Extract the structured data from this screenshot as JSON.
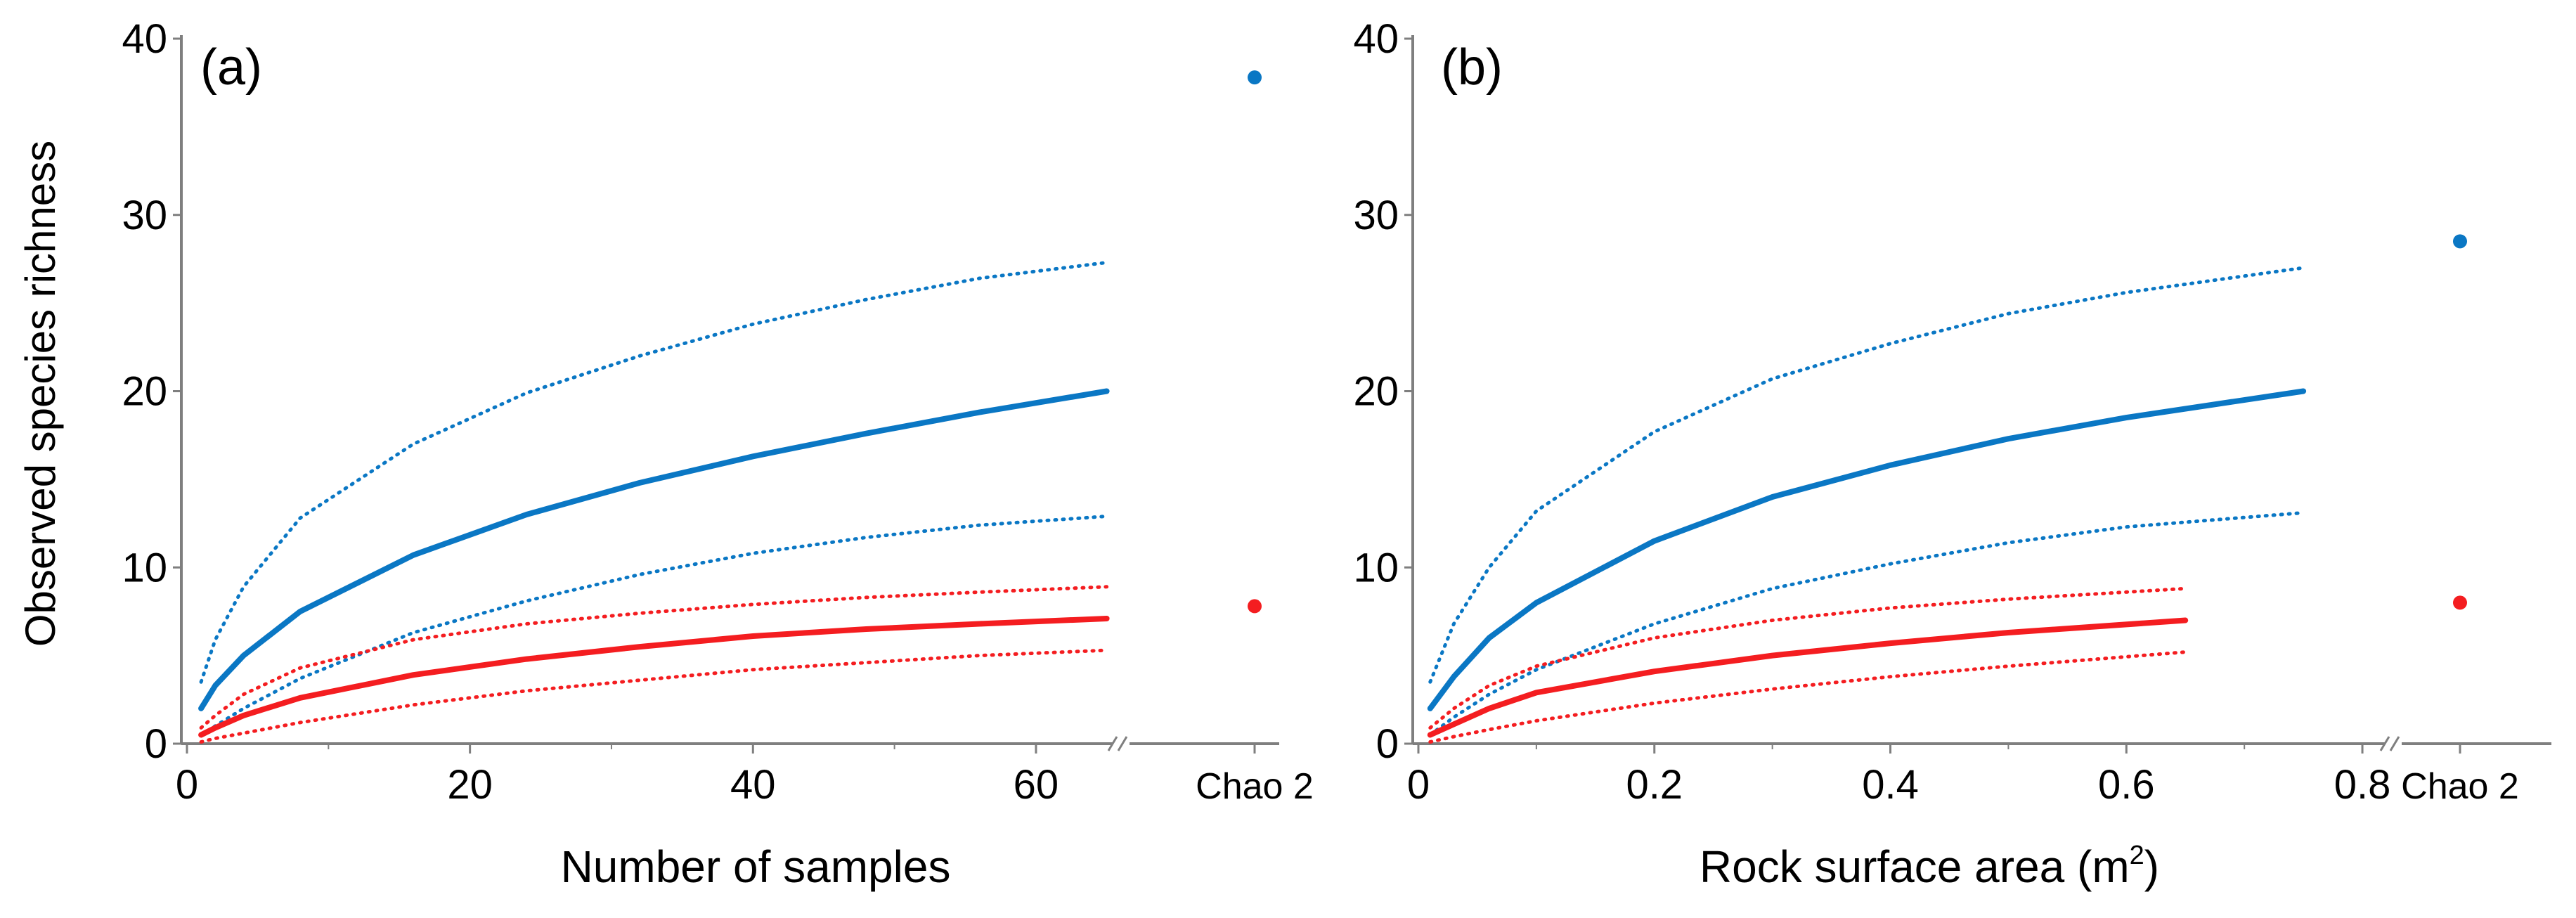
{
  "figure": {
    "y_axis_title": "Observed species richness"
  },
  "colors": {
    "blue": "#0a77c4",
    "red": "#f41d20",
    "axis": "#7f7f7f",
    "text": "#000000"
  },
  "chart_data": [
    {
      "type": "line",
      "panel_label": "(a)",
      "xlabel": "Number of samples",
      "xlabel_sup": "",
      "xlabel_after": "",
      "ylabel": "Observed species richness",
      "xlim": [
        0,
        68
      ],
      "ylim": [
        0,
        40
      ],
      "x_ticks": [
        0,
        20,
        40,
        60
      ],
      "x_tick_labels": [
        "0",
        "20",
        "40",
        "60"
      ],
      "y_ticks": [
        0,
        10,
        20,
        30,
        40
      ],
      "y_tick_labels": [
        "0",
        "10",
        "20",
        "30",
        "40"
      ],
      "x": [
        1,
        2,
        4,
        8,
        16,
        24,
        32,
        40,
        48,
        56,
        65
      ],
      "series": [
        {
          "name": "blue-upper",
          "color": "blue",
          "style": "dotted",
          "values": [
            3.5,
            5.9,
            8.9,
            12.8,
            17.0,
            19.9,
            22.0,
            23.8,
            25.2,
            26.4,
            27.3
          ]
        },
        {
          "name": "blue-observed",
          "color": "blue",
          "style": "solid",
          "values": [
            2.0,
            3.3,
            5.0,
            7.5,
            10.7,
            13.0,
            14.8,
            16.3,
            17.6,
            18.8,
            20.0
          ]
        },
        {
          "name": "blue-lower",
          "color": "blue",
          "style": "dotted",
          "values": [
            0.5,
            1.0,
            2.0,
            3.7,
            6.3,
            8.1,
            9.6,
            10.8,
            11.7,
            12.4,
            12.9
          ]
        },
        {
          "name": "red-upper",
          "color": "red",
          "style": "dotted",
          "values": [
            0.9,
            1.6,
            2.8,
            4.3,
            5.9,
            6.8,
            7.4,
            7.9,
            8.3,
            8.6,
            8.9
          ]
        },
        {
          "name": "red-observed",
          "color": "red",
          "style": "solid",
          "values": [
            0.5,
            0.9,
            1.6,
            2.6,
            3.9,
            4.8,
            5.5,
            6.1,
            6.5,
            6.8,
            7.1
          ]
        },
        {
          "name": "red-lower",
          "color": "red",
          "style": "dotted",
          "values": [
            0.1,
            0.3,
            0.6,
            1.2,
            2.2,
            3.0,
            3.6,
            4.2,
            4.6,
            5.0,
            5.3
          ]
        }
      ],
      "chao2_label": "Chao 2",
      "chao2_points": [
        {
          "series": "blue",
          "value": 37.8
        },
        {
          "series": "red",
          "value": 7.8
        }
      ]
    },
    {
      "type": "line",
      "panel_label": "(b)",
      "xlabel": "Rock surface area (m",
      "xlabel_sup": "2",
      "xlabel_after": ")",
      "ylabel": "",
      "xlim": [
        0,
        0.85
      ],
      "ylim": [
        0,
        40
      ],
      "x_ticks": [
        0,
        0.2,
        0.4,
        0.6,
        0.8
      ],
      "x_tick_labels": [
        "0",
        "0.2",
        "0.4",
        "0.6",
        "0.8"
      ],
      "y_ticks": [
        0,
        10,
        20,
        30,
        40
      ],
      "y_tick_labels": [
        "0",
        "10",
        "20",
        "30",
        "40"
      ],
      "curves": [
        {
          "name": "blue-upper",
          "color": "blue",
          "style": "dotted",
          "x": [
            0.01,
            0.03,
            0.06,
            0.1,
            0.2,
            0.3,
            0.4,
            0.5,
            0.6,
            0.75
          ],
          "values": [
            3.5,
            6.8,
            10.0,
            13.2,
            17.7,
            20.7,
            22.7,
            24.4,
            25.6,
            27.0
          ]
        },
        {
          "name": "blue-observed",
          "color": "blue",
          "style": "solid",
          "x": [
            0.01,
            0.03,
            0.06,
            0.1,
            0.2,
            0.3,
            0.4,
            0.5,
            0.6,
            0.75
          ],
          "values": [
            2.0,
            3.8,
            6.0,
            8.0,
            11.5,
            14.0,
            15.8,
            17.3,
            18.5,
            20.0
          ]
        },
        {
          "name": "blue-lower",
          "color": "blue",
          "style": "dotted",
          "x": [
            0.01,
            0.03,
            0.06,
            0.1,
            0.2,
            0.3,
            0.4,
            0.5,
            0.6,
            0.75
          ],
          "values": [
            0.5,
            1.5,
            2.8,
            4.2,
            6.8,
            8.8,
            10.2,
            11.4,
            12.3,
            13.1
          ]
        },
        {
          "name": "red-upper",
          "color": "red",
          "style": "dotted",
          "x": [
            0.01,
            0.03,
            0.06,
            0.1,
            0.2,
            0.3,
            0.4,
            0.5,
            0.65
          ],
          "values": [
            0.9,
            2.0,
            3.3,
            4.4,
            6.0,
            7.0,
            7.7,
            8.2,
            8.8
          ]
        },
        {
          "name": "red-observed",
          "color": "red",
          "style": "solid",
          "x": [
            0.01,
            0.03,
            0.06,
            0.1,
            0.2,
            0.3,
            0.4,
            0.5,
            0.65
          ],
          "values": [
            0.5,
            1.1,
            2.0,
            2.9,
            4.1,
            5.0,
            5.7,
            6.3,
            7.0
          ]
        },
        {
          "name": "red-lower",
          "color": "red",
          "style": "dotted",
          "x": [
            0.01,
            0.03,
            0.06,
            0.1,
            0.2,
            0.3,
            0.4,
            0.5,
            0.65
          ],
          "values": [
            0.1,
            0.4,
            0.8,
            1.3,
            2.3,
            3.1,
            3.8,
            4.4,
            5.2
          ]
        }
      ],
      "chao2_label": "Chao 2",
      "chao2_points": [
        {
          "series": "blue",
          "value": 28.5
        },
        {
          "series": "red",
          "value": 8.0
        }
      ]
    }
  ]
}
